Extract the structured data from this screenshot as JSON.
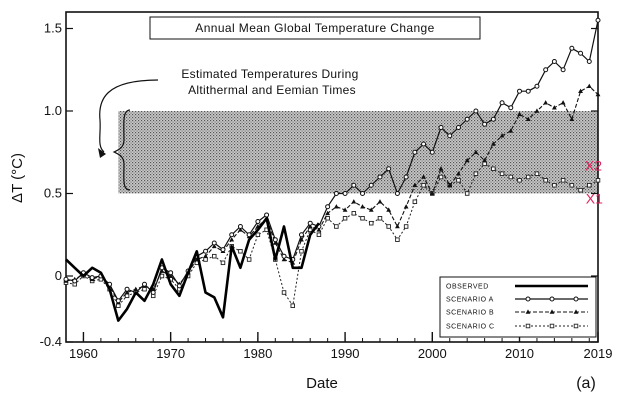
{
  "chart_data": {
    "type": "line",
    "title": "Annual Mean Global Temperature Change",
    "xlabel": "Date",
    "ylabel": "ΔT (°C)",
    "panel_label": "(a)",
    "xlim": [
      1958,
      2019
    ],
    "ylim": [
      -0.4,
      1.6
    ],
    "x_ticks": [
      1960,
      1970,
      1980,
      1990,
      2000,
      2010,
      2019
    ],
    "y_ticks": [
      -0.4,
      0,
      0.5,
      1.0,
      1.5
    ],
    "y_tick_labels": [
      "-0.4",
      "0",
      "0.5",
      "1.0",
      "1.5"
    ],
    "grid": false,
    "legend_position": "bottom-right",
    "band": {
      "y0": 0.5,
      "y1": 1.0,
      "x_start": 1964,
      "annotation_lines": [
        "Estimated Temperatures During",
        "Altithermal and Eemian Times"
      ]
    },
    "markers": [
      {
        "label": "X2",
        "x": 2017.5,
        "y": 0.64,
        "color": "#e0245e"
      },
      {
        "label": "X1",
        "x": 2017.6,
        "y": 0.44,
        "color": "#e0245e"
      }
    ],
    "series": [
      {
        "name": "OBSERVED",
        "style": "solid-thick",
        "x": [
          1958,
          1959,
          1960,
          1961,
          1962,
          1963,
          1964,
          1965,
          1966,
          1967,
          1968,
          1969,
          1970,
          1971,
          1972,
          1973,
          1974,
          1975,
          1976,
          1977,
          1978,
          1979,
          1980,
          1981,
          1982,
          1983,
          1984,
          1985,
          1986,
          1987
        ],
        "y": [
          0.1,
          0.05,
          0.0,
          0.05,
          0.02,
          -0.08,
          -0.27,
          -0.2,
          -0.1,
          -0.15,
          -0.05,
          0.1,
          -0.05,
          -0.12,
          0.02,
          0.15,
          -0.1,
          -0.13,
          -0.25,
          0.18,
          0.05,
          0.22,
          0.28,
          0.35,
          0.1,
          0.3,
          0.05,
          0.05,
          0.25,
          0.32
        ]
      },
      {
        "name": "SCENARIO A",
        "style": "solid-circle",
        "x": [
          1958,
          1959,
          1960,
          1961,
          1962,
          1963,
          1964,
          1965,
          1966,
          1967,
          1968,
          1969,
          1970,
          1971,
          1972,
          1973,
          1974,
          1975,
          1976,
          1977,
          1978,
          1979,
          1980,
          1981,
          1982,
          1983,
          1984,
          1985,
          1986,
          1987,
          1988,
          1989,
          1990,
          1991,
          1992,
          1993,
          1994,
          1995,
          1996,
          1997,
          1998,
          1999,
          2000,
          2001,
          2002,
          2003,
          2004,
          2005,
          2006,
          2007,
          2008,
          2009,
          2010,
          2011,
          2012,
          2013,
          2014,
          2015,
          2016,
          2017,
          2018,
          2019
        ],
        "y": [
          -0.02,
          -0.03,
          0.02,
          -0.01,
          0.0,
          -0.05,
          -0.15,
          -0.08,
          -0.1,
          -0.05,
          -0.1,
          0.05,
          0.02,
          -0.06,
          0.03,
          0.12,
          0.15,
          0.2,
          0.16,
          0.25,
          0.3,
          0.25,
          0.33,
          0.37,
          0.22,
          0.12,
          0.1,
          0.25,
          0.32,
          0.3,
          0.42,
          0.5,
          0.5,
          0.55,
          0.5,
          0.55,
          0.6,
          0.65,
          0.5,
          0.6,
          0.75,
          0.8,
          0.75,
          0.9,
          0.85,
          0.9,
          0.95,
          1.0,
          0.92,
          0.95,
          1.05,
          1.02,
          1.12,
          1.12,
          1.15,
          1.25,
          1.3,
          1.25,
          1.38,
          1.35,
          1.3,
          1.55
        ]
      },
      {
        "name": "SCENARIO B",
        "style": "dash-triangle",
        "x": [
          1958,
          1959,
          1960,
          1961,
          1962,
          1963,
          1964,
          1965,
          1966,
          1967,
          1968,
          1969,
          1970,
          1971,
          1972,
          1973,
          1974,
          1975,
          1976,
          1977,
          1978,
          1979,
          1980,
          1981,
          1982,
          1983,
          1984,
          1985,
          1986,
          1987,
          1988,
          1989,
          1990,
          1991,
          1992,
          1993,
          1994,
          1995,
          1996,
          1997,
          1998,
          1999,
          2000,
          2001,
          2002,
          2003,
          2004,
          2005,
          2006,
          2007,
          2008,
          2009,
          2010,
          2011,
          2012,
          2013,
          2014,
          2015,
          2016,
          2017,
          2018,
          2019
        ],
        "y": [
          -0.03,
          -0.02,
          0.01,
          -0.02,
          0.0,
          -0.06,
          -0.16,
          -0.1,
          -0.08,
          -0.06,
          -0.08,
          0.03,
          0.0,
          -0.05,
          0.02,
          0.1,
          0.12,
          0.18,
          0.15,
          0.22,
          0.28,
          0.24,
          0.3,
          0.35,
          0.2,
          0.1,
          0.08,
          0.22,
          0.3,
          0.28,
          0.38,
          0.42,
          0.4,
          0.45,
          0.42,
          0.4,
          0.45,
          0.4,
          0.3,
          0.42,
          0.55,
          0.6,
          0.5,
          0.65,
          0.55,
          0.62,
          0.7,
          0.75,
          0.7,
          0.8,
          0.85,
          0.88,
          0.98,
          0.95,
          1.0,
          1.05,
          1.02,
          1.05,
          0.95,
          1.12,
          1.15,
          1.1
        ]
      },
      {
        "name": "SCENARIO C",
        "style": "dot-square",
        "x": [
          1958,
          1959,
          1960,
          1961,
          1962,
          1963,
          1964,
          1965,
          1966,
          1967,
          1968,
          1969,
          1970,
          1971,
          1972,
          1973,
          1974,
          1975,
          1976,
          1977,
          1978,
          1979,
          1980,
          1981,
          1982,
          1983,
          1984,
          1985,
          1986,
          1987,
          1988,
          1989,
          1990,
          1991,
          1992,
          1993,
          1994,
          1995,
          1996,
          1997,
          1998,
          1999,
          2000,
          2001,
          2002,
          2003,
          2004,
          2005,
          2006,
          2007,
          2008,
          2009,
          2010,
          2011,
          2012,
          2013,
          2014,
          2015,
          2016,
          2017,
          2018,
          2019
        ],
        "y": [
          -0.04,
          -0.05,
          0.0,
          -0.03,
          -0.02,
          -0.08,
          -0.18,
          -0.12,
          -0.1,
          -0.08,
          -0.12,
          0.0,
          -0.02,
          -0.08,
          0.0,
          0.08,
          0.1,
          0.12,
          0.08,
          0.18,
          0.15,
          0.1,
          0.25,
          0.28,
          0.1,
          -0.1,
          -0.18,
          0.15,
          0.28,
          0.25,
          0.35,
          0.3,
          0.35,
          0.38,
          0.35,
          0.32,
          0.35,
          0.3,
          0.22,
          0.3,
          0.45,
          0.55,
          0.5,
          0.6,
          0.55,
          0.58,
          0.5,
          0.62,
          0.68,
          0.65,
          0.62,
          0.6,
          0.58,
          0.6,
          0.62,
          0.58,
          0.55,
          0.58,
          0.55,
          0.52,
          0.55,
          0.58
        ]
      }
    ]
  }
}
